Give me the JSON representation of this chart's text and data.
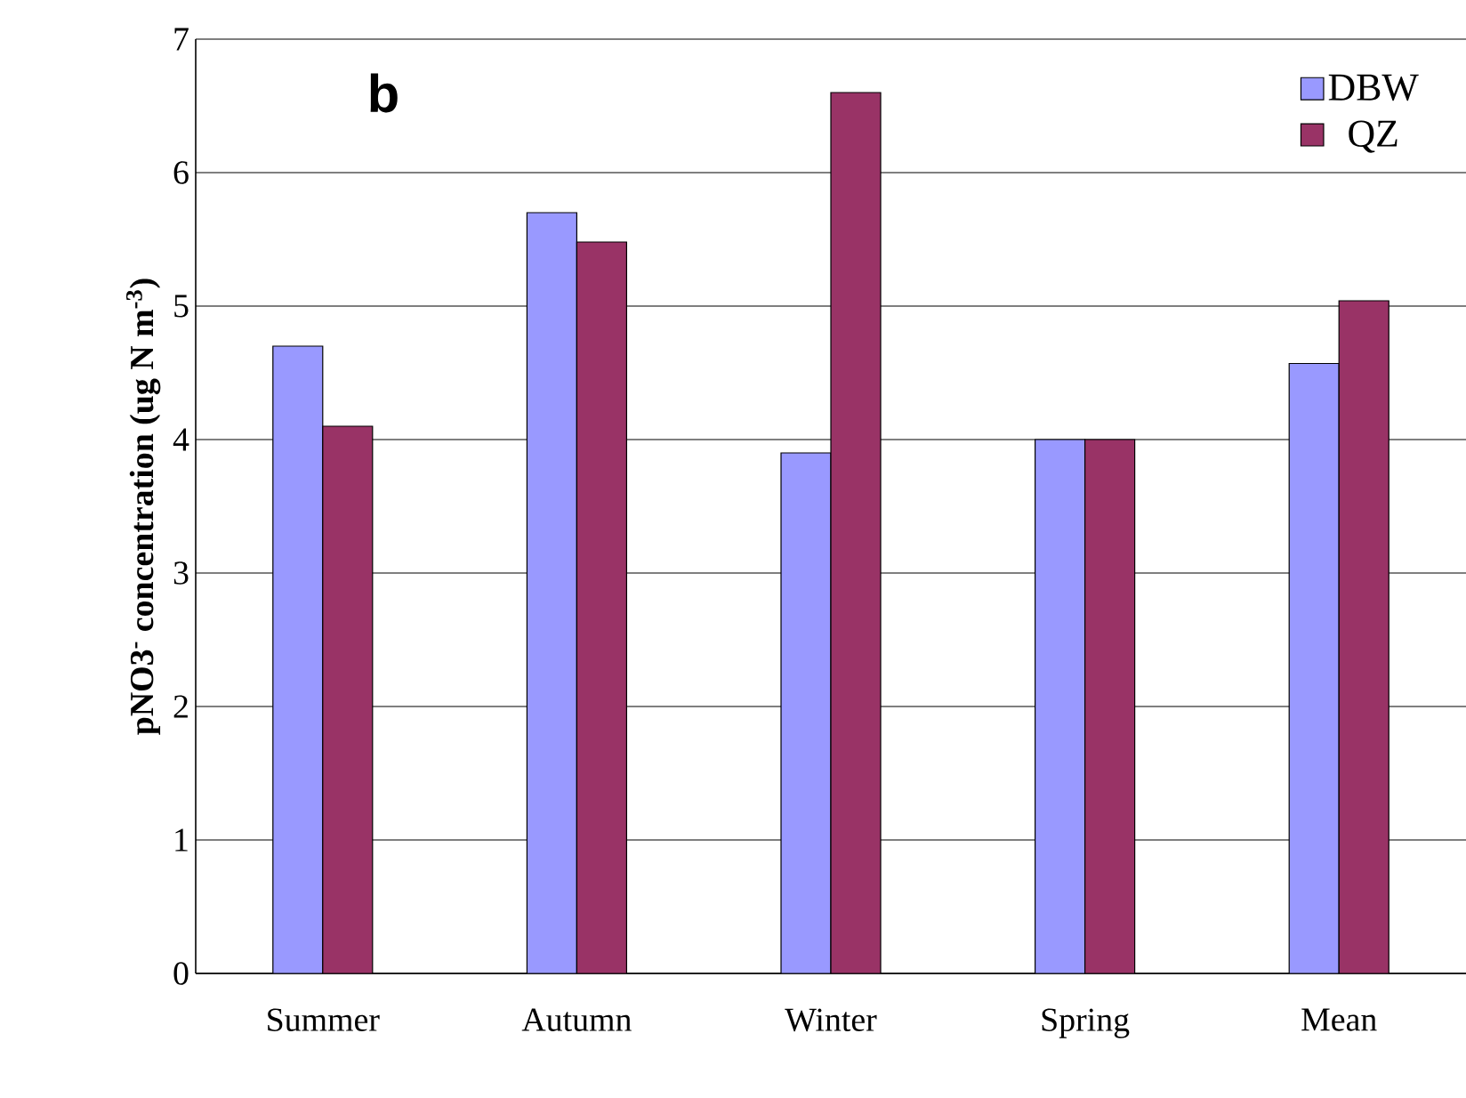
{
  "chart_data": {
    "type": "bar",
    "ylabel": "pNO3$^{-}$ concentration (ug N m$^{-3}$)",
    "annotations": [
      "**b**"
    ],
    "categories": [
      "Summer",
      "Autumn",
      "Winter",
      "Spring",
      "Mean"
    ],
    "series": [
      {
        "name": "DBW",
        "color": "#9999ff",
        "values": [
          4.7,
          5.7,
          3.9,
          4.0,
          4.57
        ]
      },
      {
        "name": "QZ",
        "color": "#993366",
        "values": [
          4.1,
          5.48,
          6.6,
          4.0,
          5.04
        ]
      }
    ],
    "ylim": [
      0,
      7
    ],
    "yticks": [
      0,
      1,
      2,
      3,
      4,
      5,
      6,
      7
    ],
    "grid": "y",
    "legend": "top right"
  }
}
